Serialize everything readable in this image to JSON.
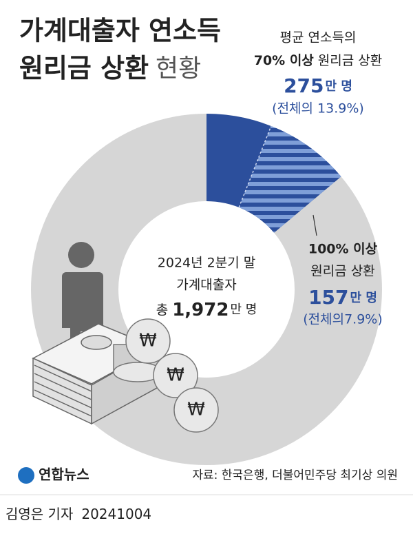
{
  "chart_data": {
    "type": "donut",
    "title_lines": [
      "가계대출자 연소득",
      "원리금 상환"
    ],
    "title_suffix": "현황",
    "center_lines": [
      "2024년 2분기 말",
      "가계대출자"
    ],
    "total_prefix": "총",
    "total_label": "1,972",
    "total_unit": "만 명",
    "series": [
      {
        "pre": "평균 연소득의",
        "name": "70% 이상",
        "post": "원리금 상환",
        "count": 275,
        "unit": "만 명",
        "value": 13.9,
        "value_label": "(전체의 13.9%)",
        "color": "#2c4f9c"
      },
      {
        "name": "100% 이상",
        "post": "원리금 상환",
        "count": 157,
        "unit": "만 명",
        "value": 7.9,
        "value_label": "(전체의7.9%)",
        "color": "#7f9fd8"
      }
    ],
    "rest_color": "#d6d6d6",
    "logo": "연합뉴스",
    "source": "자료: 한국은행, 더불어민주당 최기상 의원",
    "byline": "김영은 기자",
    "date": "20241004"
  }
}
